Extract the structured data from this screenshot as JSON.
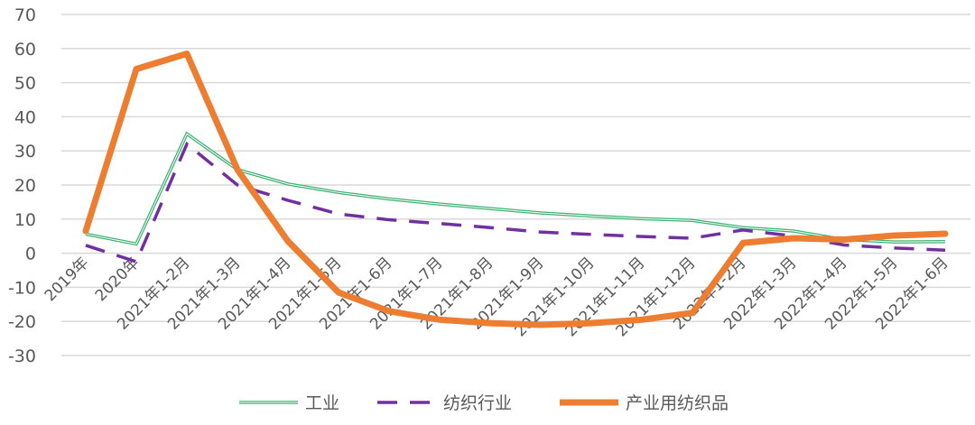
{
  "chart_data": {
    "type": "line",
    "title": "",
    "xlabel": "",
    "ylabel": "",
    "ylim": [
      -30,
      70
    ],
    "yticks": [
      -30,
      -20,
      -10,
      0,
      10,
      20,
      30,
      40,
      50,
      60,
      70
    ],
    "grid": true,
    "legend_position": "bottom",
    "categories": [
      "2019年",
      "2020年",
      "2021年1-2月",
      "2021年1-3月",
      "2021年1-4月",
      "2021年1-5月",
      "2021年1-6月",
      "2021年1-7月",
      "2021年1-8月",
      "2021年1-9月",
      "2021年1-10月",
      "2021年1-11月",
      "2021年1-12月",
      "2022年1-2月",
      "2022年1-3月",
      "2022年1-4月",
      "2022年1-5月",
      "2022年1-6月"
    ],
    "series": [
      {
        "name": "工业",
        "color": "#3cb371",
        "style": "double-thin",
        "values": [
          5.6,
          2.7,
          35,
          24.5,
          20.3,
          17.8,
          15.9,
          14.4,
          13.1,
          11.8,
          10.9,
          10.1,
          9.6,
          7.5,
          6.5,
          4.0,
          3.3,
          3.4
        ]
      },
      {
        "name": "纺织行业",
        "color": "#7030a0",
        "style": "dashed",
        "values": [
          2.3,
          -2.5,
          32,
          20,
          15.5,
          11.5,
          9.8,
          8.7,
          7.5,
          6.2,
          5.5,
          4.9,
          4.4,
          6.8,
          5.0,
          2.4,
          1.5,
          0.9
        ]
      },
      {
        "name": "产业用纺织品",
        "color": "#ed7d31",
        "style": "thick",
        "values": [
          6.5,
          54,
          58.5,
          24.5,
          3.5,
          -11.5,
          -17,
          -19.5,
          -20.5,
          -21,
          -20.5,
          -19.5,
          -17.5,
          3.0,
          4.4,
          4.0,
          5.2,
          5.7
        ]
      }
    ]
  }
}
